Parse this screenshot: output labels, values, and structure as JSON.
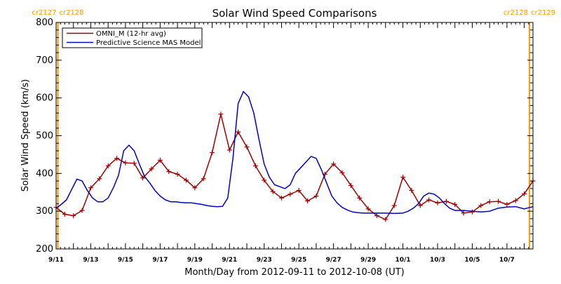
{
  "chart_data": {
    "type": "line",
    "title": "Solar Wind Speed Comparisons",
    "xlabel": "Month/Day from 2012-09-11 to 2012-10-08 (UT)",
    "ylabel": "Solar Wind Speed (km/s)",
    "ylim": [
      200,
      800
    ],
    "xlim": [
      0,
      27.5
    ],
    "x_unit": "days since 2012-09-11 00:00 UT",
    "yticks": [
      200,
      300,
      400,
      500,
      600,
      700,
      800
    ],
    "xticks": [
      {
        "x": 0,
        "label": "9/11"
      },
      {
        "x": 2,
        "label": "9/13"
      },
      {
        "x": 4,
        "label": "9/15"
      },
      {
        "x": 6,
        "label": "9/17"
      },
      {
        "x": 8,
        "label": "9/19"
      },
      {
        "x": 10,
        "label": "9/21"
      },
      {
        "x": 12,
        "label": "9/23"
      },
      {
        "x": 14,
        "label": "9/25"
      },
      {
        "x": 16,
        "label": "9/27"
      },
      {
        "x": 18,
        "label": "9/29"
      },
      {
        "x": 20,
        "label": "10/1"
      },
      {
        "x": 22,
        "label": "10/3"
      },
      {
        "x": 24,
        "label": "10/5"
      },
      {
        "x": 26,
        "label": "10/7"
      }
    ],
    "carrington_markers": [
      {
        "x": 0.1,
        "label_left": "cr2127",
        "label_right": "cr2128"
      },
      {
        "x": 27.3,
        "label_left": "cr2128",
        "label_right": "cr2129"
      }
    ],
    "legend_position": "top-left",
    "series": [
      {
        "name": "OMNI_M (12-hr avg)",
        "color": "#a00000",
        "markers": "plus",
        "x": [
          0.0,
          0.5,
          1.0,
          1.5,
          2.0,
          2.5,
          3.0,
          3.5,
          4.0,
          4.5,
          5.0,
          5.5,
          6.0,
          6.5,
          7.0,
          7.5,
          8.0,
          8.5,
          9.0,
          9.5,
          10.0,
          10.5,
          11.0,
          11.5,
          12.0,
          12.5,
          13.0,
          13.5,
          14.0,
          14.5,
          15.0,
          15.5,
          16.0,
          16.5,
          17.0,
          17.5,
          18.0,
          18.5,
          19.0,
          19.5,
          20.0,
          20.5,
          21.0,
          21.5,
          22.0,
          22.5,
          23.0,
          23.5,
          24.0,
          24.5,
          25.0,
          25.5,
          26.0,
          26.5,
          27.0,
          27.5
        ],
        "values": [
          310,
          292,
          288,
          302,
          362,
          386,
          420,
          440,
          428,
          427,
          388,
          412,
          435,
          405,
          398,
          382,
          362,
          386,
          455,
          557,
          462,
          510,
          470,
          420,
          382,
          352,
          335,
          345,
          355,
          327,
          340,
          398,
          425,
          402,
          368,
          335,
          306,
          288,
          278,
          315,
          390,
          355,
          315,
          330,
          322,
          326,
          318,
          295,
          298,
          315,
          325,
          326,
          318,
          328,
          346,
          380
        ]
      },
      {
        "name": "Predictive Science MAS Model",
        "color": "#0000c8",
        "markers": "none",
        "x": [
          0.0,
          0.3,
          0.6,
          0.9,
          1.2,
          1.5,
          1.8,
          2.1,
          2.4,
          2.7,
          3.0,
          3.3,
          3.6,
          3.9,
          4.2,
          4.5,
          4.8,
          5.1,
          5.4,
          5.7,
          6.0,
          6.3,
          6.6,
          6.9,
          7.2,
          7.5,
          7.8,
          8.1,
          8.4,
          8.7,
          9.0,
          9.3,
          9.6,
          9.9,
          10.2,
          10.5,
          10.8,
          11.1,
          11.4,
          11.7,
          12.0,
          12.3,
          12.6,
          12.9,
          13.2,
          13.5,
          13.8,
          14.1,
          14.4,
          14.7,
          15.0,
          15.3,
          15.6,
          15.9,
          16.2,
          16.5,
          16.8,
          17.1,
          17.4,
          17.7,
          18.0,
          18.5,
          19.0,
          19.5,
          20.0,
          20.3,
          20.6,
          20.9,
          21.2,
          21.5,
          21.8,
          22.1,
          22.4,
          22.7,
          23.0,
          23.5,
          24.0,
          24.5,
          25.0,
          25.5,
          26.0,
          26.5,
          27.0,
          27.5
        ],
        "values": [
          308,
          318,
          330,
          358,
          385,
          380,
          355,
          335,
          325,
          325,
          335,
          362,
          395,
          460,
          475,
          460,
          425,
          392,
          375,
          355,
          340,
          330,
          325,
          325,
          323,
          322,
          322,
          320,
          318,
          315,
          313,
          312,
          313,
          335,
          440,
          585,
          617,
          603,
          560,
          490,
          425,
          390,
          370,
          365,
          360,
          370,
          400,
          415,
          430,
          445,
          440,
          410,
          375,
          340,
          322,
          310,
          303,
          298,
          296,
          295,
          295,
          295,
          295,
          294,
          295,
          300,
          308,
          320,
          340,
          348,
          345,
          335,
          320,
          308,
          302,
          302,
          300,
          298,
          300,
          308,
          311,
          312,
          306,
          312
        ]
      }
    ]
  }
}
